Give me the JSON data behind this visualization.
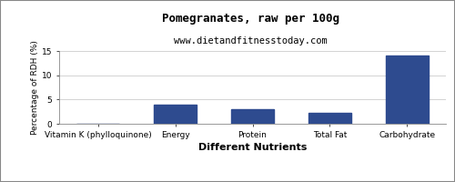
{
  "title": "Pomegranates, raw per 100g",
  "subtitle": "www.dietandfitnesstoday.com",
  "xlabel": "Different Nutrients",
  "ylabel": "Percentage of RDH (%)",
  "categories": [
    "Vitamin K (phylloquinone)",
    "Energy",
    "Protein",
    "Total Fat",
    "Carbohydrate"
  ],
  "values": [
    0,
    4.0,
    3.0,
    2.3,
    14.0
  ],
  "bar_color": "#2e4b8f",
  "ylim": [
    0,
    15
  ],
  "yticks": [
    0,
    5,
    10,
    15
  ],
  "background_color": "#ffffff",
  "title_fontsize": 9,
  "subtitle_fontsize": 7.5,
  "xlabel_fontsize": 8,
  "ylabel_fontsize": 6.5,
  "tick_fontsize": 6.5
}
